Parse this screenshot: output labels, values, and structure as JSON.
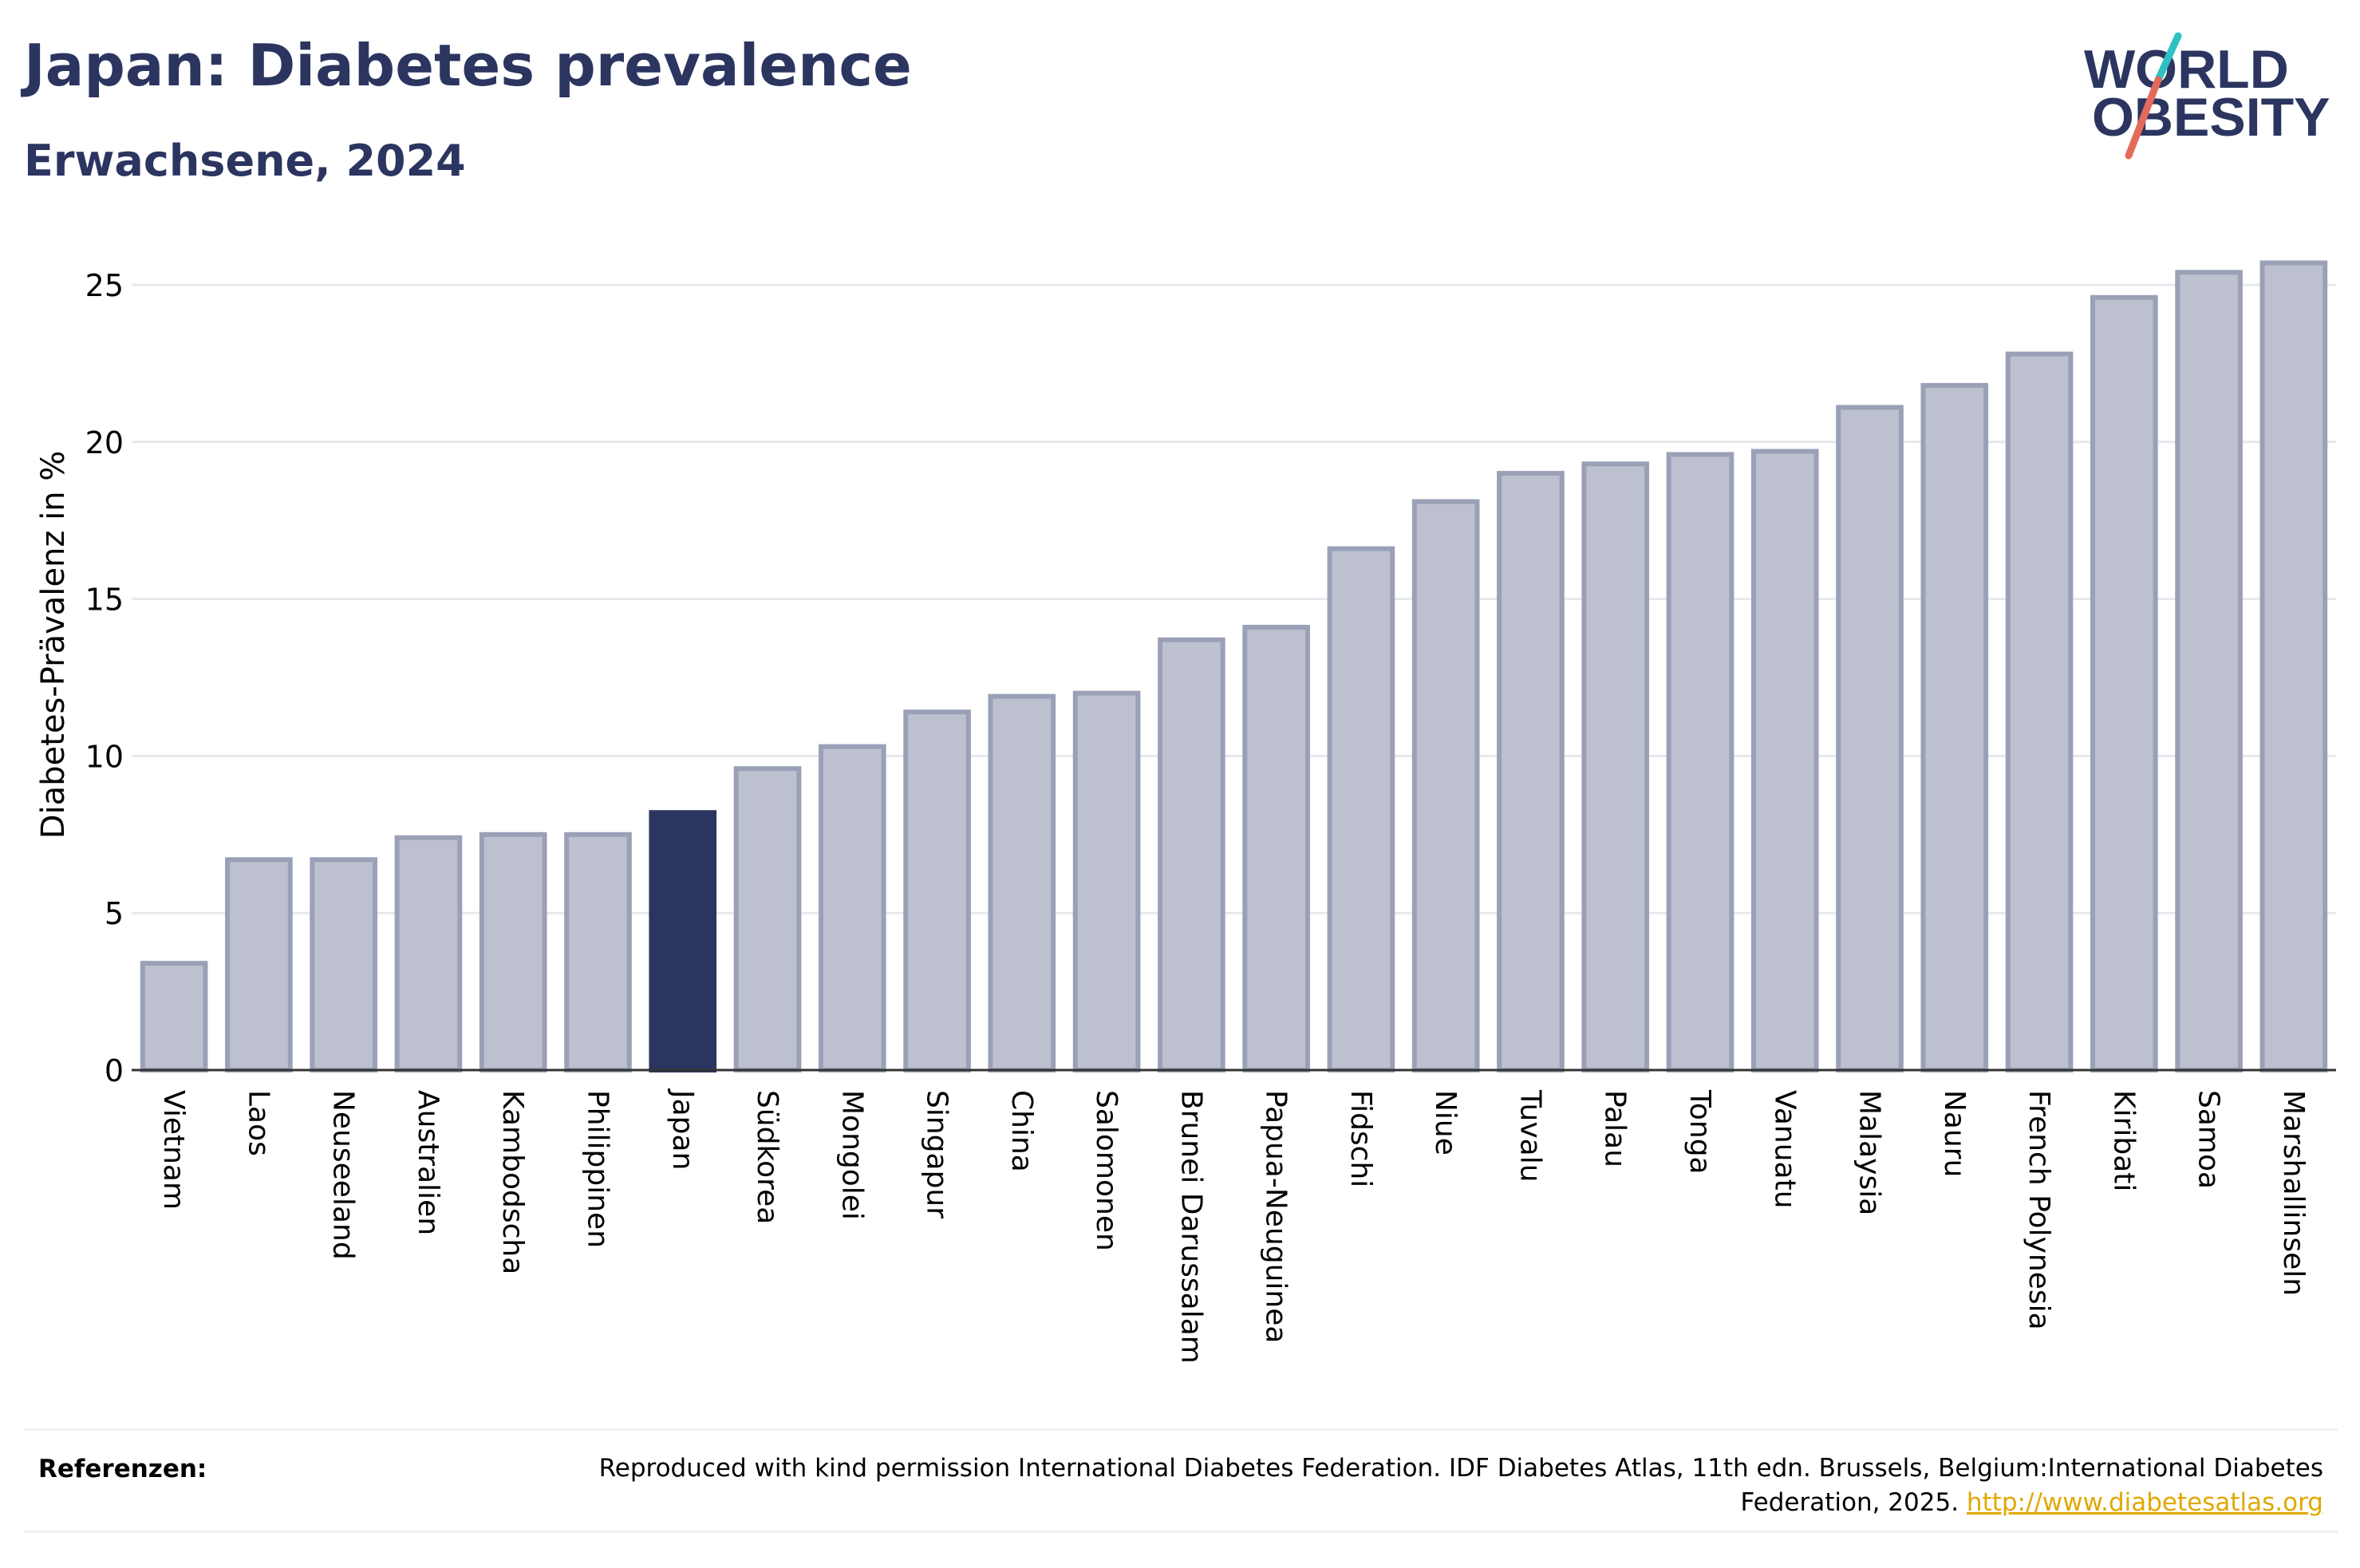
{
  "header": {
    "title": "Japan: Diabetes prevalence",
    "subtitle": "Erwachsene, 2024"
  },
  "logo": {
    "line1": "WORLD",
    "line2": "OBESITY",
    "accent_colors": [
      "#2fc1c4",
      "#e46a5a"
    ],
    "text_color": "#2b3560"
  },
  "chart_data": {
    "type": "bar",
    "ylabel": "Diabetes-Prävalenz in %",
    "ylim": [
      0,
      26
    ],
    "yticks": [
      0,
      5,
      10,
      15,
      20,
      25
    ],
    "grid": true,
    "highlight": "Japan",
    "colors": {
      "bar_fill": "#bdc1cf",
      "bar_stroke": "#9aa0b6",
      "highlight_fill": "#2b3560"
    },
    "categories": [
      "Vietnam",
      "Laos",
      "Neuseeland",
      "Australien",
      "Kambodscha",
      "Philippinen",
      "Japan",
      "Südkorea",
      "Mongolei",
      "Singapur",
      "China",
      "Salomonen",
      "Brunei Darussalam",
      "Papua-Neuguinea",
      "Fidschi",
      "Niue",
      "Tuvalu",
      "Palau",
      "Tonga",
      "Vanuatu",
      "Malaysia",
      "Nauru",
      "French Polynesia",
      "Kiribati",
      "Samoa",
      "Marshallinseln"
    ],
    "values": [
      3.4,
      6.7,
      6.7,
      7.4,
      7.5,
      7.5,
      8.2,
      9.6,
      10.3,
      11.4,
      11.9,
      12.0,
      13.7,
      14.1,
      16.6,
      18.1,
      19.0,
      19.3,
      19.6,
      19.7,
      21.1,
      21.8,
      22.8,
      24.6,
      25.4,
      25.7
    ]
  },
  "references": {
    "label": "Referenzen:",
    "text": "Reproduced with kind permission International Diabetes Federation. IDF Diabetes Atlas, 11th edn. Brussels, Belgium:International Diabetes Federation, 2025.",
    "link": "http://www.diabetesatlas.org"
  }
}
